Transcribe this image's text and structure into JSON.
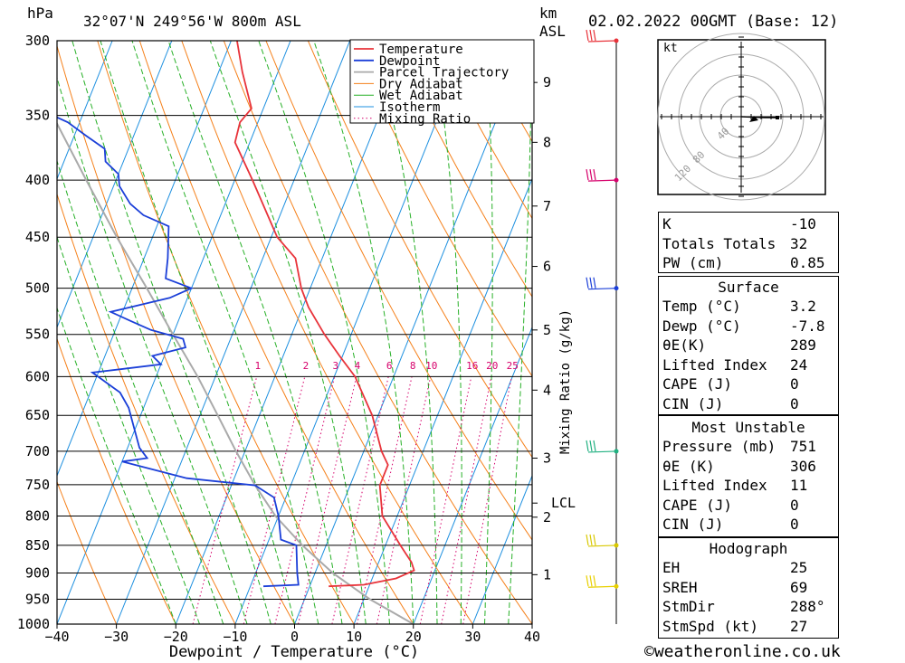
{
  "header": {
    "pressure_unit": "hPa",
    "location": "32°07'N  249°56'W  800m  ASL",
    "km_label": "km",
    "asl_label": "ASL",
    "datetime": "02.02.2022  00GMT  (Base: 12)"
  },
  "chart_data": {
    "type": "line",
    "xlabel": "Dewpoint / Temperature (°C)",
    "ylabel": "hPa",
    "right_axis_label": "Mixing Ratio (g/kg)",
    "xlim": [
      -40,
      40
    ],
    "ylim": [
      1000,
      300
    ],
    "x_ticks": [
      -40,
      -30,
      -20,
      -10,
      0,
      10,
      20,
      30,
      40
    ],
    "pressure_levels": [
      300,
      350,
      400,
      450,
      500,
      550,
      600,
      650,
      700,
      750,
      800,
      850,
      900,
      950,
      1000
    ],
    "height_km_ticks": [
      {
        "label": "9",
        "p": 327
      },
      {
        "label": "8",
        "p": 370
      },
      {
        "label": "7",
        "p": 422
      },
      {
        "label": "6",
        "p": 478
      },
      {
        "label": "5",
        "p": 545
      },
      {
        "label": "4",
        "p": 617
      },
      {
        "label": "3",
        "p": 710
      },
      {
        "label": "2",
        "p": 802
      },
      {
        "label": "1",
        "p": 903
      }
    ],
    "lcl": {
      "label": "LCL",
      "p": 779
    },
    "mixing_ratio_labels": [
      "1",
      "2",
      "3",
      "4",
      "6",
      "8",
      "10",
      "16",
      "20",
      "25"
    ],
    "mixing_ratio_values": [
      1,
      2,
      3,
      4,
      6,
      8,
      10,
      16,
      20,
      25
    ],
    "mixing_ratio_label_p": 595,
    "legend": [
      "Temperature",
      "Dewpoint",
      "Parcel Trajectory",
      "Dry Adiabat",
      "Wet Adiabat",
      "Isotherm",
      "Mixing Ratio"
    ],
    "colors": {
      "temperature": "#e8333a",
      "dewpoint": "#1b3fd8",
      "parcel": "#aaaaaa",
      "dry_adiabat": "#f5801a",
      "wet_adiabat": "#27b027",
      "isotherm": "#1e90e0",
      "mixing_ratio": "#d6006b"
    },
    "series": [
      {
        "name": "Temperature",
        "points": [
          {
            "p": 925,
            "t": 3.2
          },
          {
            "p": 922,
            "t": 9
          },
          {
            "p": 910,
            "t": 14
          },
          {
            "p": 895,
            "t": 16.5
          },
          {
            "p": 880,
            "t": 15.5
          },
          {
            "p": 850,
            "t": 12.5
          },
          {
            "p": 800,
            "t": 7.5
          },
          {
            "p": 751,
            "t": 5
          },
          {
            "p": 720,
            "t": 5
          },
          {
            "p": 700,
            "t": 3
          },
          {
            "p": 650,
            "t": -1
          },
          {
            "p": 600,
            "t": -6.5
          },
          {
            "p": 575,
            "t": -10.5
          },
          {
            "p": 550,
            "t": -14.5
          },
          {
            "p": 520,
            "t": -19
          },
          {
            "p": 500,
            "t": -21.5
          },
          {
            "p": 470,
            "t": -24.5
          },
          {
            "p": 450,
            "t": -29
          },
          {
            "p": 400,
            "t": -37
          },
          {
            "p": 370,
            "t": -42.5
          },
          {
            "p": 355,
            "t": -43
          },
          {
            "p": 345,
            "t": -42
          },
          {
            "p": 320,
            "t": -46
          },
          {
            "p": 300,
            "t": -49
          }
        ]
      },
      {
        "name": "Dewpoint",
        "points": [
          {
            "p": 925,
            "t": -7.8
          },
          {
            "p": 922,
            "t": -2
          },
          {
            "p": 900,
            "t": -3
          },
          {
            "p": 850,
            "t": -5
          },
          {
            "p": 840,
            "t": -8
          },
          {
            "p": 800,
            "t": -10
          },
          {
            "p": 770,
            "t": -12
          },
          {
            "p": 751,
            "t": -16
          },
          {
            "p": 740,
            "t": -28
          },
          {
            "p": 715,
            "t": -40
          },
          {
            "p": 710,
            "t": -36
          },
          {
            "p": 695,
            "t": -38
          },
          {
            "p": 670,
            "t": -40
          },
          {
            "p": 640,
            "t": -42.5
          },
          {
            "p": 620,
            "t": -45
          },
          {
            "p": 595,
            "t": -51
          },
          {
            "p": 585,
            "t": -40
          },
          {
            "p": 575,
            "t": -42
          },
          {
            "p": 565,
            "t": -37
          },
          {
            "p": 555,
            "t": -38
          },
          {
            "p": 545,
            "t": -44
          },
          {
            "p": 535,
            "t": -48
          },
          {
            "p": 525,
            "t": -52
          },
          {
            "p": 510,
            "t": -43
          },
          {
            "p": 500,
            "t": -40
          },
          {
            "p": 490,
            "t": -45
          },
          {
            "p": 470,
            "t": -46
          },
          {
            "p": 440,
            "t": -48
          },
          {
            "p": 430,
            "t": -53
          },
          {
            "p": 420,
            "t": -56
          },
          {
            "p": 405,
            "t": -59
          },
          {
            "p": 395,
            "t": -60
          },
          {
            "p": 385,
            "t": -63
          },
          {
            "p": 375,
            "t": -64
          },
          {
            "p": 365,
            "t": -68
          },
          {
            "p": 355,
            "t": -72
          },
          {
            "p": 350,
            "t": -75
          },
          {
            "p": 320,
            "t": -80
          },
          {
            "p": 310,
            "t": -79
          },
          {
            "p": 300,
            "t": -81
          }
        ]
      },
      {
        "name": "Parcel Trajectory",
        "points": [
          {
            "p": 1000,
            "t": 20
          },
          {
            "p": 950,
            "t": 11
          },
          {
            "p": 900,
            "t": 3
          },
          {
            "p": 850,
            "t": -4
          },
          {
            "p": 800,
            "t": -10.5
          },
          {
            "p": 751,
            "t": -16
          },
          {
            "p": 700,
            "t": -21.5
          },
          {
            "p": 650,
            "t": -27
          },
          {
            "p": 600,
            "t": -33
          },
          {
            "p": 550,
            "t": -40
          },
          {
            "p": 500,
            "t": -47.5
          },
          {
            "p": 450,
            "t": -56
          },
          {
            "p": 400,
            "t": -65
          },
          {
            "p": 350,
            "t": -75
          },
          {
            "p": 300,
            "t": -86
          }
        ]
      }
    ],
    "wind_barbs": [
      {
        "p": 300,
        "color": "#e8333a"
      },
      {
        "p": 400,
        "color": "#d6006b"
      },
      {
        "p": 500,
        "color": "#1b3fd8"
      },
      {
        "p": 700,
        "color": "#20b080"
      },
      {
        "p": 850,
        "color": "#d8c800"
      },
      {
        "p": 925,
        "color": "#e8d000"
      }
    ]
  },
  "hodograph": {
    "unit": "kt",
    "ring_labels": [
      "40",
      "80",
      "120"
    ]
  },
  "indices": {
    "rows": [
      {
        "k": "K",
        "v": "-10"
      },
      {
        "k": "Totals Totals",
        "v": "32"
      },
      {
        "k": "PW (cm)",
        "v": "0.85"
      }
    ]
  },
  "surface": {
    "title": "Surface",
    "rows": [
      {
        "k": "Temp (°C)",
        "v": "3.2"
      },
      {
        "k": "Dewp (°C)",
        "v": "-7.8"
      },
      {
        "k": "θE(K)",
        "v": "289"
      },
      {
        "k": "Lifted Index",
        "v": "24"
      },
      {
        "k": "CAPE (J)",
        "v": "0"
      },
      {
        "k": "CIN (J)",
        "v": "0"
      }
    ]
  },
  "most_unstable": {
    "title": "Most Unstable",
    "rows": [
      {
        "k": "Pressure (mb)",
        "v": "751"
      },
      {
        "k": "θE (K)",
        "v": "306"
      },
      {
        "k": "Lifted Index",
        "v": "11"
      },
      {
        "k": "CAPE (J)",
        "v": "0"
      },
      {
        "k": "CIN (J)",
        "v": "0"
      }
    ]
  },
  "hodograph_table": {
    "title": "Hodograph",
    "rows": [
      {
        "k": "EH",
        "v": "25"
      },
      {
        "k": "SREH",
        "v": "69"
      },
      {
        "k": "StmDir",
        "v": "288°"
      },
      {
        "k": "StmSpd (kt)",
        "v": "27"
      }
    ]
  },
  "footer": {
    "copyright": "©weatheronline.co.uk"
  }
}
